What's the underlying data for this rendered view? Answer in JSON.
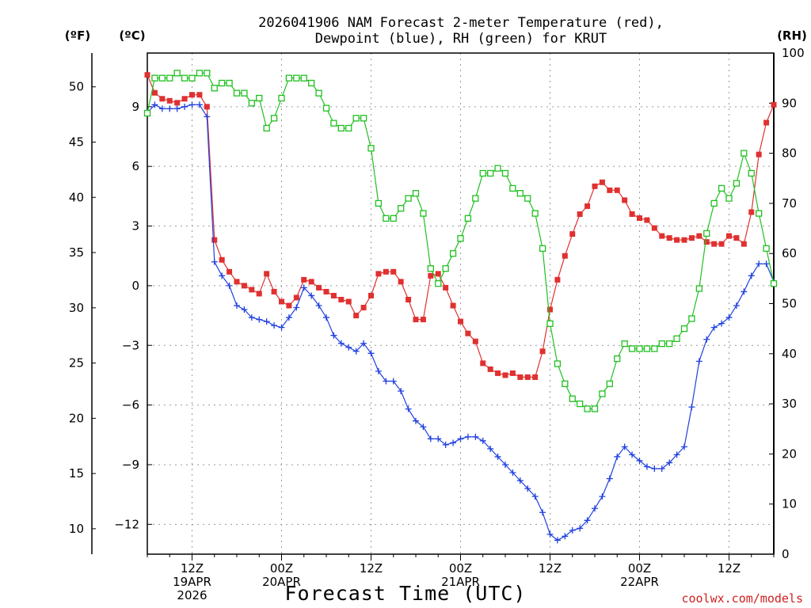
{
  "chart_data": {
    "type": "line",
    "title_line1": "2026041906 NAM Forecast 2-meter Temperature (red),",
    "title_line2": "Dewpoint (blue), RH (green) for KRUT",
    "xlabel": "Forecast Time (UTC)",
    "credit": "coolwx.com/models",
    "left_outer_unit": "(ºF)",
    "left_inner_unit": "(ºC)",
    "right_unit": "(RH)",
    "x_hours_start": 0,
    "x_hours_end": 84,
    "x_step_hours": 1,
    "ylim_c": [
      -13.5,
      11.7
    ],
    "ylim_rh": [
      0,
      100
    ],
    "ticks_c": [
      "9",
      "6",
      "3",
      "0",
      "−3",
      "−6",
      "−9",
      "−12"
    ],
    "ticks_c_values": [
      9,
      6,
      3,
      0,
      -3,
      -6,
      -9,
      -12
    ],
    "ticks_f": [
      "50",
      "45",
      "40",
      "35",
      "30",
      "25",
      "20",
      "15",
      "10"
    ],
    "ticks_f_values": [
      50,
      45,
      40,
      35,
      30,
      25,
      20,
      15,
      10
    ],
    "ticks_rh": [
      "100",
      "90",
      "80",
      "70",
      "60",
      "50",
      "40",
      "30",
      "20",
      "10",
      "0"
    ],
    "ticks_rh_values": [
      100,
      90,
      80,
      70,
      60,
      50,
      40,
      30,
      20,
      10,
      0
    ],
    "x_ticks": [
      {
        "hour": 6,
        "label1": "12Z",
        "label2": "19APR",
        "label3": "2026"
      },
      {
        "hour": 18,
        "label1": "00Z",
        "label2": "20APR",
        "label3": ""
      },
      {
        "hour": 30,
        "label1": "12Z",
        "label2": "",
        "label3": ""
      },
      {
        "hour": 42,
        "label1": "00Z",
        "label2": "21APR",
        "label3": ""
      },
      {
        "hour": 54,
        "label1": "12Z",
        "label2": "",
        "label3": ""
      },
      {
        "hour": 66,
        "label1": "00Z",
        "label2": "22APR",
        "label3": ""
      },
      {
        "hour": 78,
        "label1": "12Z",
        "label2": "",
        "label3": ""
      }
    ],
    "grid": true,
    "series": [
      {
        "name": "Temperature (red)",
        "axis": "celsius",
        "color": "#e03030",
        "marker": "filled-square",
        "values": [
          10.6,
          9.7,
          9.4,
          9.3,
          9.2,
          9.4,
          9.6,
          9.6,
          9.0,
          2.3,
          1.3,
          0.7,
          0.2,
          0.0,
          -0.2,
          -0.4,
          0.6,
          -0.3,
          -0.8,
          -1.0,
          -0.6,
          0.3,
          0.2,
          -0.1,
          -0.3,
          -0.5,
          -0.7,
          -0.8,
          -1.5,
          -1.1,
          -0.5,
          0.6,
          0.7,
          0.7,
          0.2,
          -0.7,
          -1.7,
          -1.7,
          0.5,
          0.6,
          -0.1,
          -1.0,
          -1.8,
          -2.4,
          -2.8,
          -3.9,
          -4.2,
          -4.4,
          -4.5,
          -4.4,
          -4.6,
          -4.6,
          -4.6,
          -3.3,
          -1.2,
          0.3,
          1.5,
          2.6,
          3.6,
          4.0,
          5.0,
          5.2,
          4.8,
          4.8,
          4.3,
          3.6,
          3.4,
          3.3,
          2.9,
          2.5,
          2.4,
          2.3,
          2.3,
          2.4,
          2.5,
          2.2,
          2.1,
          2.1,
          2.5,
          2.4,
          2.1,
          3.7,
          6.6,
          8.2,
          9.1
        ]
      },
      {
        "name": "Dewpoint (blue)",
        "axis": "celsius",
        "color": "#2040e0",
        "marker": "plus",
        "values": [
          8.7,
          9.1,
          8.9,
          8.9,
          8.9,
          9.0,
          9.1,
          9.1,
          8.5,
          1.2,
          0.5,
          0.0,
          -1.0,
          -1.2,
          -1.6,
          -1.7,
          -1.8,
          -2.0,
          -2.1,
          -1.6,
          -1.1,
          -0.1,
          -0.5,
          -1.0,
          -1.6,
          -2.5,
          -2.9,
          -3.1,
          -3.3,
          -2.9,
          -3.4,
          -4.3,
          -4.8,
          -4.8,
          -5.3,
          -6.2,
          -6.8,
          -7.1,
          -7.7,
          -7.7,
          -8.0,
          -7.9,
          -7.7,
          -7.6,
          -7.6,
          -7.8,
          -8.2,
          -8.6,
          -9.0,
          -9.4,
          -9.8,
          -10.2,
          -10.6,
          -11.4,
          -12.5,
          -12.8,
          -12.6,
          -12.3,
          -12.2,
          -11.8,
          -11.2,
          -10.6,
          -9.7,
          -8.6,
          -8.1,
          -8.5,
          -8.8,
          -9.1,
          -9.2,
          -9.2,
          -8.9,
          -8.5,
          -8.1,
          -6.1,
          -3.8,
          -2.7,
          -2.1,
          -1.9,
          -1.6,
          -1.0,
          -0.3,
          0.5,
          1.1,
          1.1,
          0.2
        ]
      },
      {
        "name": "RH (green)",
        "axis": "rh",
        "color": "#20c020",
        "marker": "open-square",
        "values": [
          88,
          95,
          95,
          95,
          96,
          95,
          95,
          96,
          96,
          93,
          94,
          94,
          92,
          92,
          90,
          91,
          85,
          87,
          91,
          95,
          95,
          95,
          94,
          92,
          89,
          86,
          85,
          85,
          87,
          87,
          81,
          70,
          67,
          67,
          69,
          71,
          72,
          68,
          57,
          54,
          57,
          60,
          63,
          67,
          71,
          76,
          76,
          77,
          76,
          73,
          72,
          71,
          68,
          61,
          46,
          38,
          34,
          31,
          30,
          29,
          29,
          32,
          34,
          39,
          42,
          41,
          41,
          41,
          41,
          42,
          42,
          43,
          45,
          47,
          53,
          64,
          70,
          73,
          71,
          74,
          80,
          76,
          68,
          61,
          54
        ]
      }
    ]
  }
}
